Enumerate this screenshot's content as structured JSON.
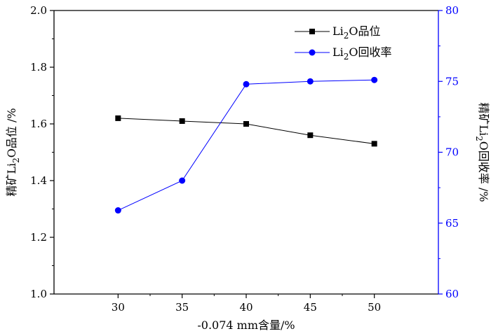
{
  "colors": {
    "grade": "#000000",
    "recovery": "#0000ff",
    "axis": "#000000",
    "right_axis": "#0000ff"
  },
  "chart_data": {
    "type": "line",
    "x": [
      30,
      35,
      40,
      45,
      50
    ],
    "xlabel": "-0.074 mm含量/%",
    "xlim": [
      25,
      55
    ],
    "xticks": [
      30,
      35,
      40,
      45,
      50
    ],
    "xtick_labels": [
      "30",
      "35",
      "40",
      "45",
      "50"
    ],
    "ylabel_left": {
      "prefix": "精矿Li",
      "sub": "2",
      "suffix": "O品位 /%"
    },
    "ylim_left": [
      1.0,
      2.0
    ],
    "yticks_left": [
      1.0,
      1.2,
      1.4,
      1.6,
      1.8,
      2.0
    ],
    "ytick_labels_left": [
      "1.0",
      "1.2",
      "1.4",
      "1.6",
      "1.8",
      "2.0"
    ],
    "ylabel_right": {
      "prefix": "精矿Li",
      "sub": "2",
      "suffix": "O回收率 /%"
    },
    "ylim_right": [
      60,
      80
    ],
    "yticks_right": [
      60,
      65,
      70,
      75,
      80
    ],
    "ytick_labels_right": [
      "60",
      "65",
      "70",
      "75",
      "80"
    ],
    "grid": false,
    "legend_position": "top-right",
    "series": [
      {
        "name": {
          "prefix": "Li",
          "sub": "2",
          "suffix": "O品位"
        },
        "axis": "left",
        "marker": "square",
        "values": [
          1.62,
          1.61,
          1.6,
          1.56,
          1.53
        ]
      },
      {
        "name": {
          "prefix": "Li",
          "sub": "2",
          "suffix": "O回收率"
        },
        "axis": "right",
        "marker": "circle",
        "values": [
          65.9,
          68.0,
          74.8,
          75.0,
          75.1
        ]
      }
    ]
  }
}
